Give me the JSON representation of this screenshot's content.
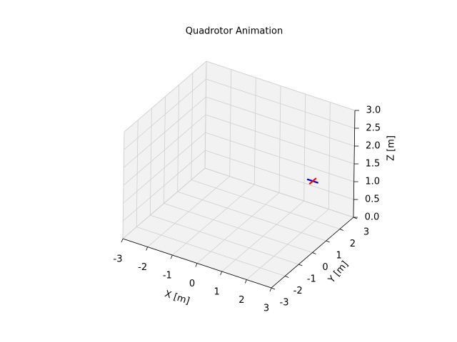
{
  "chart_data": {
    "type": "line3d",
    "title": "Quadrotor Animation",
    "xlabel": "X [m]",
    "ylabel": "Y [m]",
    "zlabel": "Z [m]",
    "xlim": [
      -3,
      3
    ],
    "ylim": [
      -3,
      3
    ],
    "zlim": [
      0,
      3
    ],
    "xticks": [
      -3,
      -2,
      -1,
      0,
      1,
      2,
      3
    ],
    "yticks": [
      -3,
      -2,
      -1,
      0,
      1,
      2,
      3
    ],
    "zticks": [
      {
        "value": 0,
        "label": "0.0"
      },
      {
        "value": 0.5,
        "label": "0.5"
      },
      {
        "value": 1,
        "label": "1.0"
      },
      {
        "value": 1.5,
        "label": "1.5"
      },
      {
        "value": 2,
        "label": "2.0"
      },
      {
        "value": 2.5,
        "label": "2.5"
      },
      {
        "value": 3,
        "label": "3.0"
      }
    ],
    "grid": true,
    "series": [
      {
        "color": "#0000ff",
        "x": [
          1.55,
          2.0
        ],
        "y": [
          2.2,
          2.2
        ],
        "z": [
          1.0,
          1.0
        ]
      },
      {
        "color": "#ff0000",
        "x": [
          1.78,
          1.78
        ],
        "y": [
          2.45,
          1.95
        ],
        "z": [
          1.0,
          1.0
        ]
      }
    ]
  }
}
